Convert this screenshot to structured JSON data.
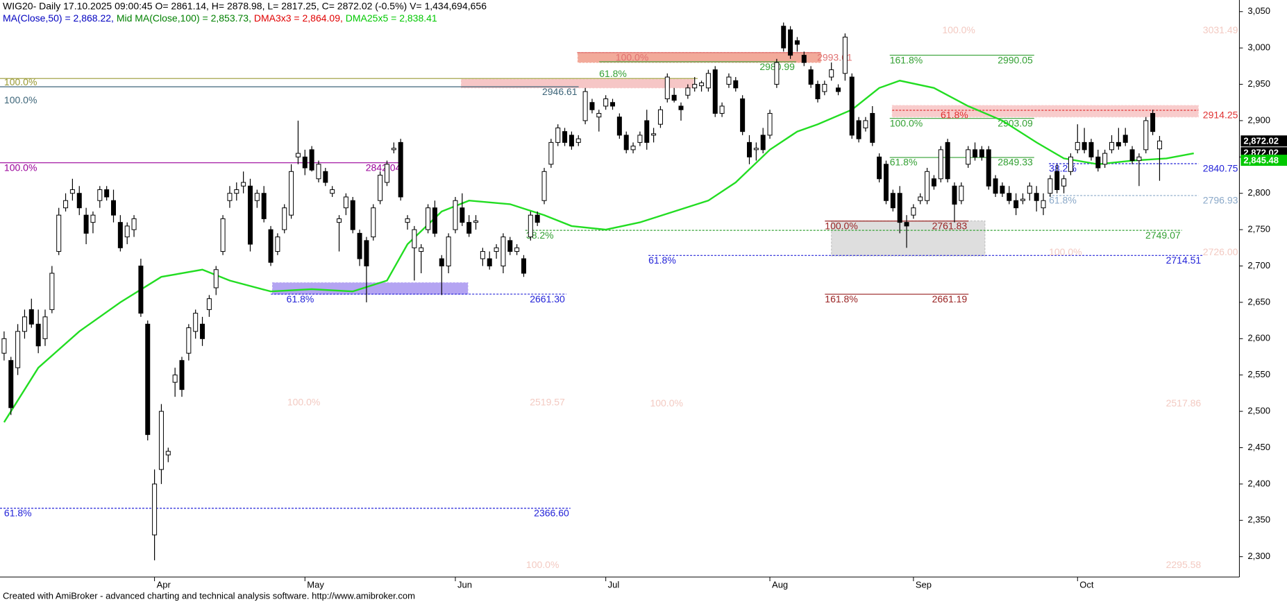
{
  "chart_data": {
    "type": "candlestick",
    "title": "WIG20- Daily 17.10.2025 09:00:45 O= 2861.14, H= 2878.98, L= 2817.25, C= 2872.02 (-0.5%) V= 1,434,694,656",
    "indicators": [
      {
        "text": "MA(Close,50) = 2,868.22,",
        "color": "#0000c0"
      },
      {
        "text": "Mid MA(Close,100) = 2,853.73,",
        "color": "#008000"
      },
      {
        "text": "DMA3x3 = 2,864.09,",
        "color": "#e00000"
      },
      {
        "text": "DMA25x5 = 2,838.41",
        "color": "#00c800"
      }
    ],
    "footer": "Created with AmiBroker - advanced charting and technical analysis software. http://www.amibroker.com",
    "categories": [
      null,
      null,
      null,
      null,
      null,
      null,
      null,
      null,
      null,
      null,
      null,
      null,
      null,
      null,
      null,
      null,
      null,
      null,
      null,
      null,
      null,
      null,
      "Apr",
      null,
      null,
      null,
      null,
      null,
      null,
      null,
      null,
      null,
      null,
      null,
      null,
      null,
      null,
      null,
      null,
      null,
      null,
      null,
      null,
      null,
      "May",
      null,
      null,
      null,
      null,
      null,
      null,
      null,
      null,
      null,
      null,
      null,
      null,
      null,
      null,
      null,
      null,
      null,
      null,
      null,
      null,
      null,
      "Jun",
      null,
      null,
      null,
      null,
      null,
      null,
      null,
      null,
      null,
      null,
      null,
      null,
      null,
      null,
      null,
      null,
      null,
      null,
      null,
      null,
      null,
      "Jul",
      null,
      null,
      null,
      null,
      null,
      null,
      null,
      null,
      null,
      null,
      null,
      null,
      null,
      null,
      null,
      null,
      null,
      null,
      null,
      null,
      null,
      null,
      null,
      "Aug",
      null,
      null,
      null,
      null,
      null,
      null,
      null,
      null,
      null,
      null,
      null,
      null,
      null,
      null,
      null,
      null,
      null,
      null,
      null,
      null,
      "Sep",
      null,
      null,
      null,
      null,
      null,
      null,
      null,
      null,
      null,
      null,
      null,
      null,
      null,
      null,
      null,
      null,
      null,
      null,
      null,
      null,
      null,
      null,
      null,
      "Oct",
      null,
      null,
      null,
      null,
      null,
      null,
      null,
      null,
      null,
      null,
      null,
      null
    ],
    "open": [
      2580,
      2570,
      2560,
      2610,
      2640,
      2620,
      2600,
      2640,
      2720,
      2780,
      2800,
      2800,
      2770,
      2760,
      2790,
      2805,
      2790,
      2760,
      2740,
      2750,
      2700,
      2620,
      2330,
      2420,
      2440,
      2540,
      2570,
      2580,
      2610,
      2620,
      2640,
      2670,
      2720,
      2790,
      2800,
      2810,
      2810,
      2790,
      2800,
      2750,
      2720,
      2750,
      2770,
      2850,
      2850,
      2860,
      2820,
      2830,
      2800,
      2760,
      2780,
      2790,
      2745,
      2735,
      2740,
      2790,
      2815,
      2860,
      2870,
      2760,
      2725,
      2720,
      2750,
      2780,
      2710,
      2700,
      2750,
      2780,
      2760,
      2760,
      2710,
      2710,
      2720,
      2700,
      2735,
      2720,
      2710,
      2740,
      2770,
      2790,
      2840,
      2870,
      2885,
      2880,
      2870,
      2900,
      2925,
      2905,
      2920,
      2925,
      2905,
      2880,
      2860,
      2870,
      2900,
      2880,
      2895,
      2930,
      2935,
      2920,
      2935,
      2945,
      2948,
      2945,
      2970,
      2910,
      2950,
      2955,
      2930,
      2870,
      2860,
      2880,
      2880,
      2950,
      3030,
      3025,
      3010,
      2990,
      2970,
      2950,
      2940,
      2960,
      2945,
      2965,
      2960,
      2900,
      2890,
      2910,
      2850,
      2840,
      2800,
      2800,
      2760,
      2770,
      2790,
      2790,
      2820,
      2820,
      2870,
      2810,
      2790,
      2840,
      2860,
      2860,
      2860,
      2820,
      2810,
      2800,
      2790,
      2790,
      2800,
      2800,
      2780,
      2800,
      2830,
      2810,
      2830,
      2860,
      2870,
      2870,
      2850,
      2840,
      2860,
      2870,
      2880,
      2860,
      2845,
      2860,
      2910,
      2861.14
    ],
    "high": [
      2610,
      2575,
      2620,
      2640,
      2655,
      2640,
      2640,
      2700,
      2780,
      2800,
      2820,
      2810,
      2780,
      2775,
      2810,
      2810,
      2805,
      2770,
      2760,
      2770,
      2710,
      2625,
      2420,
      2510,
      2450,
      2560,
      2575,
      2620,
      2640,
      2630,
      2660,
      2700,
      2770,
      2810,
      2815,
      2830,
      2820,
      2805,
      2810,
      2755,
      2745,
      2785,
      2840,
      2900,
      2860,
      2865,
      2845,
      2835,
      2810,
      2770,
      2800,
      2795,
      2750,
      2740,
      2785,
      2830,
      2845,
      2870,
      2875,
      2770,
      2755,
      2730,
      2785,
      2790,
      2715,
      2745,
      2795,
      2800,
      2770,
      2770,
      2725,
      2720,
      2730,
      2745,
      2740,
      2730,
      2715,
      2775,
      2775,
      2835,
      2875,
      2895,
      2890,
      2885,
      2880,
      2945,
      2930,
      2915,
      2935,
      2930,
      2910,
      2885,
      2870,
      2885,
      2915,
      2890,
      2920,
      2965,
      2945,
      2925,
      2950,
      2960,
      2955,
      2970,
      2975,
      2925,
      2965,
      2960,
      2935,
      2880,
      2870,
      2890,
      2915,
      2985,
      3035,
      3030,
      3015,
      2995,
      2975,
      2955,
      2955,
      2980,
      2950,
      3020,
      2965,
      2905,
      2905,
      2920,
      2855,
      2845,
      2805,
      2810,
      2770,
      2785,
      2800,
      2835,
      2825,
      2865,
      2875,
      2815,
      2815,
      2865,
      2870,
      2865,
      2865,
      2825,
      2815,
      2810,
      2800,
      2800,
      2815,
      2810,
      2800,
      2825,
      2840,
      2825,
      2855,
      2895,
      2890,
      2875,
      2860,
      2860,
      2880,
      2890,
      2890,
      2865,
      2855,
      2905,
      2915,
      2878.98
    ],
    "low": [
      2570,
      2495,
      2550,
      2600,
      2615,
      2580,
      2590,
      2635,
      2715,
      2775,
      2790,
      2770,
      2730,
      2745,
      2780,
      2790,
      2760,
      2720,
      2730,
      2740,
      2630,
      2460,
      2295,
      2400,
      2430,
      2520,
      2520,
      2570,
      2600,
      2590,
      2630,
      2660,
      2715,
      2780,
      2790,
      2800,
      2720,
      2780,
      2760,
      2700,
      2715,
      2745,
      2765,
      2840,
      2825,
      2830,
      2815,
      2810,
      2795,
      2720,
      2770,
      2745,
      2700,
      2650,
      2735,
      2785,
      2810,
      2855,
      2790,
      2750,
      2680,
      2690,
      2745,
      2740,
      2660,
      2690,
      2745,
      2755,
      2740,
      2750,
      2700,
      2695,
      2710,
      2690,
      2715,
      2715,
      2685,
      2735,
      2755,
      2785,
      2835,
      2865,
      2865,
      2860,
      2865,
      2895,
      2910,
      2885,
      2915,
      2915,
      2875,
      2855,
      2855,
      2865,
      2860,
      2870,
      2890,
      2925,
      2925,
      2900,
      2930,
      2940,
      2940,
      2940,
      2905,
      2905,
      2945,
      2940,
      2880,
      2840,
      2845,
      2855,
      2875,
      2945,
      2995,
      2985,
      2995,
      2975,
      2945,
      2925,
      2935,
      2955,
      2935,
      2955,
      2875,
      2870,
      2885,
      2865,
      2815,
      2785,
      2775,
      2745,
      2725,
      2765,
      2785,
      2785,
      2805,
      2815,
      2815,
      2760,
      2785,
      2835,
      2845,
      2845,
      2805,
      2795,
      2795,
      2785,
      2770,
      2785,
      2790,
      2775,
      2770,
      2795,
      2800,
      2800,
      2825,
      2855,
      2855,
      2845,
      2830,
      2835,
      2855,
      2860,
      2865,
      2840,
      2810,
      2855,
      2880,
      2817.25
    ],
    "close": [
      2600,
      2505,
      2610,
      2630,
      2620,
      2590,
      2630,
      2690,
      2770,
      2790,
      2805,
      2780,
      2745,
      2770,
      2805,
      2795,
      2770,
      2725,
      2755,
      2765,
      2635,
      2468,
      2400,
      2500,
      2445,
      2550,
      2530,
      2615,
      2635,
      2600,
      2655,
      2695,
      2765,
      2800,
      2805,
      2815,
      2730,
      2800,
      2765,
      2705,
      2740,
      2780,
      2830,
      2855,
      2835,
      2832,
      2840,
      2815,
      2805,
      2765,
      2795,
      2750,
      2710,
      2700,
      2780,
      2825,
      2840,
      2862,
      2795,
      2765,
      2750,
      2725,
      2780,
      2745,
      2700,
      2740,
      2790,
      2760,
      2745,
      2762,
      2720,
      2700,
      2725,
      2740,
      2720,
      2725,
      2690,
      2770,
      2760,
      2830,
      2870,
      2890,
      2870,
      2865,
      2875,
      2940,
      2915,
      2910,
      2930,
      2920,
      2880,
      2860,
      2865,
      2880,
      2870,
      2882,
      2915,
      2960,
      2928,
      2915,
      2945,
      2950,
      2952,
      2965,
      2910,
      2920,
      2960,
      2945,
      2885,
      2850,
      2862,
      2860,
      2910,
      2980,
      3000,
      2990,
      3005,
      2980,
      2950,
      2930,
      2950,
      2970,
      2940,
      3015,
      2880,
      2875,
      2900,
      2870,
      2820,
      2790,
      2780,
      2760,
      2755,
      2780,
      2795,
      2830,
      2810,
      2860,
      2820,
      2785,
      2810,
      2860,
      2850,
      2850,
      2810,
      2800,
      2800,
      2790,
      2780,
      2792,
      2810,
      2790,
      2790,
      2820,
      2805,
      2820,
      2850,
      2870,
      2860,
      2850,
      2835,
      2855,
      2870,
      2865,
      2870,
      2845,
      2850,
      2900,
      2885,
      2872.02
    ],
    "ma": {
      "color": "#22dd22",
      "x": [
        0,
        5,
        11,
        17,
        23,
        29,
        33,
        39,
        45,
        51,
        56,
        59,
        64,
        68,
        74,
        79,
        83,
        88,
        93,
        98,
        103,
        107,
        112,
        116,
        119,
        124,
        128,
        131,
        136,
        141,
        146,
        151,
        155,
        160,
        165,
        170,
        174
      ],
      "values": [
        2485,
        2560,
        2610,
        2650,
        2685,
        2695,
        2680,
        2665,
        2668,
        2665,
        2680,
        2730,
        2775,
        2790,
        2785,
        2770,
        2755,
        2750,
        2760,
        2775,
        2790,
        2815,
        2860,
        2885,
        2895,
        2915,
        2945,
        2955,
        2945,
        2920,
        2900,
        2870,
        2848,
        2840,
        2845,
        2848,
        2855
      ]
    },
    "zones": [
      {
        "low": 2945,
        "high": 2957,
        "color": "#f6c6c6"
      },
      {
        "low": 2661,
        "high": 2677,
        "color": "#b4a4f2"
      },
      {
        "low": 2980,
        "high": 2994,
        "color": "#f2aa9a"
      },
      {
        "low": 2905,
        "high": 2921,
        "color": "#f8cccc"
      },
      {
        "low": 2714,
        "high": 2762,
        "color": "#dedede"
      }
    ],
    "levels": [
      {
        "value": 2958,
        "pct": "100.0%",
        "color": "#999933",
        "style": "solid"
      },
      {
        "value": 2946.61,
        "pct": "100.0%",
        "value_label": "2946.61",
        "color": "#3c6478",
        "style": "solid"
      },
      {
        "value": 2842.04,
        "pct": "100.0%",
        "value_label": "2842.04",
        "color": "#990099",
        "style": "solid"
      },
      {
        "value": 2661.3,
        "pct": "61.8%",
        "value_label": "2661.30",
        "color": "#2323d8",
        "style": "dashed"
      },
      {
        "value": 2366.6,
        "pct": "61.8%",
        "value_label": "2366.60",
        "color": "#2323d8",
        "style": "dashed"
      },
      {
        "value": 2749.07,
        "pct": "38.2%",
        "value_label": "2749.07",
        "color": "#33a033",
        "style": "dashed"
      },
      {
        "value": 2714.51,
        "pct": "61.8%",
        "value_label": "2714.51",
        "color": "#2323d8",
        "style": "dashed"
      },
      {
        "value": 2993.61,
        "pct": "100.0%",
        "value_label": "2993.61",
        "color": "#e07070",
        "style": "solid"
      },
      {
        "value": 2980.99,
        "pct": "61.8%",
        "value_label": "2980.99",
        "color": "#33a033",
        "style": "solid"
      },
      {
        "value": 2990.05,
        "pct": "161.8%",
        "value_label": "2990.05",
        "color": "#33a033",
        "style": "solid"
      },
      {
        "value": 2903.09,
        "pct": "100.0%",
        "value_label": "2903.09",
        "color": "#33a033",
        "style": "solid"
      },
      {
        "value": 2914.25,
        "pct": "61.8%",
        "value_label": "2914.25",
        "color": "#e03030",
        "style": "dashed"
      },
      {
        "value": 2849.33,
        "pct": "61.8%",
        "value_label": "2849.33",
        "color": "#33a033",
        "style": "solid"
      },
      {
        "value": 2840.75,
        "pct": "38.2%",
        "value_label": "2840.75",
        "color": "#2323d8",
        "style": "dashed"
      },
      {
        "value": 2796.93,
        "pct": "61.8%",
        "value_label": "2796.93",
        "color": "#8aa8c8",
        "style": "dashed"
      },
      {
        "value": 2761.83,
        "pct": "100.0%",
        "value_label": "2761.83",
        "color": "#992222",
        "style": "solid"
      },
      {
        "value": 2661.19,
        "pct": "161.8%",
        "value_label": "2661.19",
        "color": "#992222",
        "style": "solid"
      },
      {
        "value": 3031.49,
        "pct": "100.0%",
        "value_label": "3031.49",
        "color": "#f3cac2",
        "style": "none"
      },
      {
        "value": 2519.57,
        "pct": "100.0%",
        "value_label": "2519.57",
        "color": "#f3cac2",
        "style": "none"
      },
      {
        "value": 2517.86,
        "pct": "100.0%",
        "value_label": "2517.86",
        "color": "#f3cac2",
        "style": "none"
      },
      {
        "value": 2295.58,
        "pct": "100.0%",
        "value_label": "2295.58",
        "color": "#f3cac2",
        "style": "none"
      },
      {
        "value": 2726.0,
        "pct": "100.0%",
        "value_label": "2726.00",
        "color": "#f3cac2",
        "style": "none"
      }
    ],
    "price_tags": [
      {
        "value": 2872.02,
        "label": "2,872.02",
        "color": "#000000"
      },
      {
        "value": 2872.02,
        "label": "2,872.02",
        "color": "#000000"
      },
      {
        "value": 2845.48,
        "label": "2,845.48",
        "color": "#00c800"
      }
    ],
    "ylim": [
      2272,
      3066
    ],
    "yticks": [
      {
        "value": 2300,
        "label": "2,300"
      },
      {
        "value": 2350,
        "label": "2,350"
      },
      {
        "value": 2400,
        "label": "2,400"
      },
      {
        "value": 2450,
        "label": "2,450"
      },
      {
        "value": 2500,
        "label": "2,500"
      },
      {
        "value": 2550,
        "label": "2,550"
      },
      {
        "value": 2600,
        "label": "2,600"
      },
      {
        "value": 2650,
        "label": "2,650"
      },
      {
        "value": 2700,
        "label": "2,700"
      },
      {
        "value": 2750,
        "label": "2,750"
      },
      {
        "value": 2800,
        "label": "2,800"
      },
      {
        "value": 2850,
        "label": "2,850"
      },
      {
        "value": 2900,
        "label": "2,900"
      },
      {
        "value": 2950,
        "label": "2,950"
      },
      {
        "value": 3000,
        "label": "3,000"
      },
      {
        "value": 3050,
        "label": "3,050"
      }
    ],
    "up_color": "#ffffff",
    "down_color": "#000000"
  }
}
